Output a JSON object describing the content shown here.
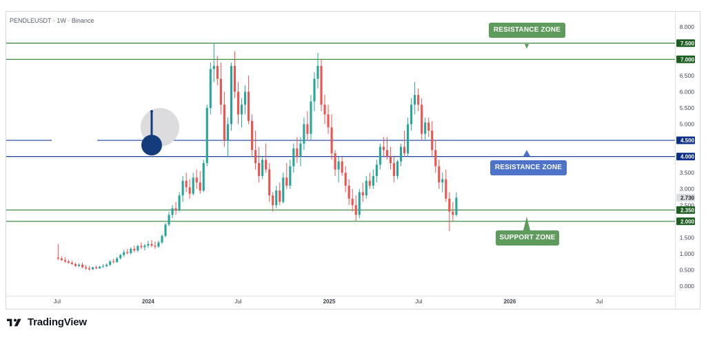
{
  "title": "PENDLEUSDT · 1W · Binance",
  "brand": "TradingView",
  "colors": {
    "up": "#26a69a",
    "down": "#ef5350",
    "green_line": "#2e7d32",
    "blue_line": "#1a3f9c",
    "zone_green": "#5e9b5c",
    "zone_blue": "#4e73c9"
  },
  "annotations": {
    "resistance_top": "RESISTANCE ZONE",
    "resistance_mid": "RESISTANCE ZONE",
    "support": "SUPPORT ZONE"
  },
  "chart_data": {
    "type": "candlestick",
    "interval": "1W",
    "ylim": [
      0,
      8.5
    ],
    "y_ticks": [
      "8.000",
      "7.000",
      "6.500",
      "6.000",
      "5.500",
      "5.000",
      "4.000",
      "3.500",
      "3.000",
      "2.500",
      "1.500",
      "1.000",
      "0.500",
      "0.000"
    ],
    "y_tick_values": [
      8.0,
      7.0,
      6.5,
      6.0,
      5.5,
      5.0,
      4.0,
      3.5,
      3.0,
      2.5,
      1.5,
      1.0,
      0.5,
      0.0
    ],
    "x_ticks": [
      "Jul",
      "2024",
      "Jul",
      "2025",
      "Jul",
      "2026",
      "Jul"
    ],
    "x_tick_dates": [
      "2023-07-01",
      "2024-01-01",
      "2024-07-01",
      "2025-01-01",
      "2025-07-01",
      "2026-01-01",
      "2026-07-01"
    ],
    "x_range": [
      "2023-03-20",
      "2026-12-01"
    ],
    "price_labels": [
      {
        "value": 7.5,
        "text": "7.500",
        "style": "green"
      },
      {
        "value": 7.0,
        "text": "7.000",
        "style": "green"
      },
      {
        "value": 4.5,
        "text": "4.500",
        "style": "blue"
      },
      {
        "value": 4.0,
        "text": "4.000",
        "style": "blue"
      },
      {
        "value": 2.73,
        "text": "2.730",
        "style": "grey"
      },
      {
        "value": 2.35,
        "text": "2.350",
        "style": "green"
      },
      {
        "value": 2.0,
        "text": "2.000",
        "style": "green"
      }
    ],
    "horizontal_levels": [
      {
        "value": 7.5,
        "color": "green"
      },
      {
        "value": 7.0,
        "color": "green"
      },
      {
        "value": 4.5,
        "color": "blue",
        "gap_from": "2023-06-20",
        "gap_to": "2023-09-20"
      },
      {
        "value": 4.0,
        "color": "blue"
      },
      {
        "value": 2.35,
        "color": "green"
      },
      {
        "value": 2.0,
        "color": "green"
      }
    ],
    "first_candle_date": "2023-07-03",
    "candles": [
      [
        0.88,
        1.3,
        0.8,
        0.85
      ],
      [
        0.85,
        0.92,
        0.78,
        0.8
      ],
      [
        0.8,
        0.9,
        0.72,
        0.76
      ],
      [
        0.76,
        0.82,
        0.7,
        0.72
      ],
      [
        0.72,
        0.78,
        0.66,
        0.68
      ],
      [
        0.68,
        0.73,
        0.6,
        0.62
      ],
      [
        0.62,
        0.7,
        0.58,
        0.66
      ],
      [
        0.66,
        0.72,
        0.56,
        0.58
      ],
      [
        0.58,
        0.65,
        0.5,
        0.55
      ],
      [
        0.55,
        0.62,
        0.48,
        0.52
      ],
      [
        0.52,
        0.6,
        0.5,
        0.58
      ],
      [
        0.58,
        0.64,
        0.52,
        0.55
      ],
      [
        0.55,
        0.62,
        0.53,
        0.6
      ],
      [
        0.6,
        0.68,
        0.56,
        0.62
      ],
      [
        0.62,
        0.7,
        0.58,
        0.66
      ],
      [
        0.66,
        0.8,
        0.62,
        0.76
      ],
      [
        0.76,
        0.84,
        0.7,
        0.74
      ],
      [
        0.74,
        0.9,
        0.72,
        0.86
      ],
      [
        0.86,
        1.0,
        0.82,
        0.96
      ],
      [
        0.96,
        1.12,
        0.9,
        1.05
      ],
      [
        1.05,
        1.15,
        0.98,
        1.02
      ],
      [
        1.02,
        1.2,
        0.98,
        1.15
      ],
      [
        1.15,
        1.25,
        1.05,
        1.1
      ],
      [
        1.1,
        1.28,
        1.05,
        1.24
      ],
      [
        1.24,
        1.35,
        1.15,
        1.2
      ],
      [
        1.2,
        1.3,
        1.1,
        1.25
      ],
      [
        1.25,
        1.4,
        1.18,
        1.3
      ],
      [
        1.3,
        1.42,
        1.2,
        1.25
      ],
      [
        1.25,
        1.38,
        1.15,
        1.22
      ],
      [
        1.22,
        1.4,
        1.18,
        1.35
      ],
      [
        1.35,
        1.6,
        1.3,
        1.55
      ],
      [
        1.55,
        1.95,
        1.5,
        1.9
      ],
      [
        1.9,
        2.3,
        1.85,
        2.2
      ],
      [
        2.2,
        2.5,
        2.1,
        2.4
      ],
      [
        2.4,
        2.6,
        2.2,
        2.35
      ],
      [
        2.35,
        2.9,
        2.3,
        2.8
      ],
      [
        2.8,
        3.4,
        2.6,
        3.25
      ],
      [
        3.25,
        3.5,
        2.9,
        3.05
      ],
      [
        3.05,
        3.3,
        2.7,
        2.85
      ],
      [
        2.85,
        3.5,
        2.8,
        3.35
      ],
      [
        3.35,
        3.6,
        3.0,
        3.2
      ],
      [
        3.2,
        3.55,
        2.85,
        2.95
      ],
      [
        2.95,
        3.9,
        2.9,
        3.8
      ],
      [
        3.8,
        5.6,
        3.7,
        5.5
      ],
      [
        5.5,
        6.9,
        5.3,
        6.7
      ],
      [
        6.7,
        7.5,
        6.3,
        6.8
      ],
      [
        6.8,
        7.1,
        6.2,
        6.4
      ],
      [
        6.4,
        6.9,
        5.3,
        5.6
      ],
      [
        5.6,
        6.0,
        4.3,
        4.5
      ],
      [
        4.5,
        5.2,
        4.0,
        5.0
      ],
      [
        5.0,
        6.9,
        4.8,
        6.8
      ],
      [
        6.8,
        7.25,
        5.8,
        6.0
      ],
      [
        6.0,
        6.3,
        5.0,
        5.3
      ],
      [
        5.3,
        5.8,
        4.9,
        5.6
      ],
      [
        5.6,
        6.2,
        5.3,
        6.0
      ],
      [
        6.0,
        6.5,
        5.0,
        5.1
      ],
      [
        5.1,
        5.3,
        4.0,
        4.2
      ],
      [
        4.2,
        4.8,
        3.6,
        3.8
      ],
      [
        3.8,
        4.3,
        3.2,
        3.4
      ],
      [
        3.4,
        4.0,
        3.3,
        3.9
      ],
      [
        3.9,
        4.4,
        3.5,
        3.6
      ],
      [
        3.6,
        3.8,
        2.6,
        2.8
      ],
      [
        2.8,
        2.9,
        2.3,
        2.5
      ],
      [
        2.5,
        3.1,
        2.4,
        2.95
      ],
      [
        2.95,
        3.2,
        2.5,
        2.6
      ],
      [
        2.6,
        3.5,
        2.55,
        3.35
      ],
      [
        3.35,
        3.8,
        3.0,
        3.1
      ],
      [
        3.1,
        3.9,
        3.0,
        3.7
      ],
      [
        3.7,
        4.4,
        3.5,
        4.25
      ],
      [
        4.25,
        4.6,
        3.8,
        4.0
      ],
      [
        4.0,
        4.6,
        3.7,
        4.4
      ],
      [
        4.4,
        5.2,
        4.2,
        5.0
      ],
      [
        5.0,
        5.4,
        4.5,
        4.7
      ],
      [
        4.7,
        5.9,
        4.5,
        5.7
      ],
      [
        5.7,
        6.6,
        5.4,
        6.4
      ],
      [
        6.4,
        7.2,
        6.1,
        6.8
      ],
      [
        6.8,
        7.0,
        5.4,
        5.6
      ],
      [
        5.6,
        5.9,
        5.0,
        5.3
      ],
      [
        5.3,
        5.6,
        4.7,
        4.9
      ],
      [
        4.9,
        5.3,
        3.9,
        4.1
      ],
      [
        4.1,
        4.2,
        3.4,
        3.6
      ],
      [
        3.6,
        4.0,
        3.2,
        3.85
      ],
      [
        3.85,
        4.0,
        3.4,
        3.5
      ],
      [
        3.5,
        3.7,
        2.9,
        3.1
      ],
      [
        3.1,
        3.3,
        2.5,
        2.7
      ],
      [
        2.7,
        3.0,
        2.3,
        2.5
      ],
      [
        2.5,
        2.8,
        2.0,
        2.2
      ],
      [
        2.2,
        3.0,
        2.1,
        2.9
      ],
      [
        2.9,
        3.2,
        2.6,
        2.8
      ],
      [
        2.8,
        3.4,
        2.7,
        3.25
      ],
      [
        3.25,
        3.5,
        3.0,
        3.1
      ],
      [
        3.1,
        3.6,
        3.0,
        3.4
      ],
      [
        3.4,
        3.9,
        3.2,
        3.75
      ],
      [
        3.75,
        4.4,
        3.6,
        4.3
      ],
      [
        4.3,
        4.6,
        4.0,
        4.2
      ],
      [
        4.2,
        4.6,
        3.9,
        4.0
      ],
      [
        4.0,
        4.3,
        3.6,
        3.8
      ],
      [
        3.8,
        4.0,
        3.2,
        3.4
      ],
      [
        3.4,
        3.9,
        3.3,
        3.85
      ],
      [
        3.85,
        4.4,
        3.7,
        4.3
      ],
      [
        4.3,
        4.8,
        4.0,
        4.1
      ],
      [
        4.1,
        5.2,
        4.0,
        5.0
      ],
      [
        5.0,
        5.8,
        4.8,
        5.6
      ],
      [
        5.6,
        6.3,
        5.3,
        5.9
      ],
      [
        5.9,
        6.1,
        5.4,
        5.6
      ],
      [
        5.6,
        5.8,
        4.5,
        4.7
      ],
      [
        4.7,
        5.2,
        4.5,
        5.05
      ],
      [
        5.05,
        5.2,
        4.6,
        4.8
      ],
      [
        4.8,
        5.1,
        4.0,
        4.2
      ],
      [
        4.2,
        4.5,
        3.5,
        3.7
      ],
      [
        3.7,
        3.9,
        3.0,
        3.2
      ],
      [
        3.2,
        3.5,
        2.9,
        3.3
      ],
      [
        3.3,
        3.6,
        2.6,
        2.7
      ],
      [
        2.7,
        2.9,
        1.7,
        2.3
      ],
      [
        2.3,
        2.6,
        2.0,
        2.2
      ],
      [
        2.2,
        2.9,
        2.15,
        2.73
      ]
    ]
  }
}
